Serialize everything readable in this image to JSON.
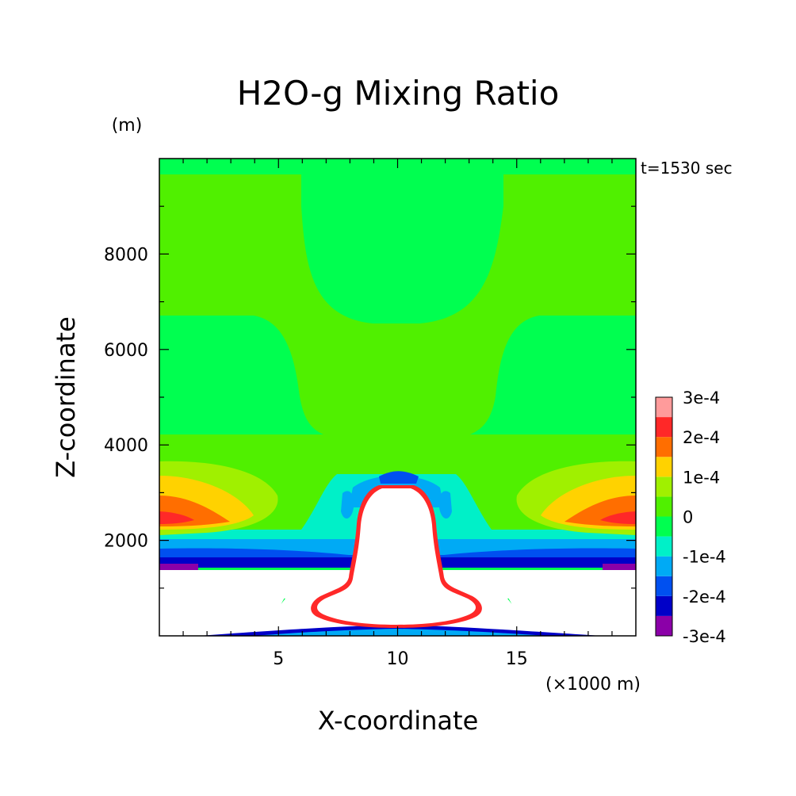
{
  "chart_data": {
    "type": "contour",
    "title": "H2O-g Mixing Ratio",
    "time_label": "t=1530 sec",
    "xlabel": "X-coordinate",
    "xunit": "(×1000 m)",
    "ylabel": "Z-coordinate",
    "yunit": "(m)",
    "xlim": [
      0,
      20
    ],
    "ylim": [
      0,
      10000
    ],
    "xticks": [
      5,
      10,
      15
    ],
    "yticks": [
      2000,
      4000,
      6000,
      8000
    ],
    "tick_labels": {
      "x": [
        "5",
        "10",
        "15"
      ],
      "y": [
        "2000",
        "4000",
        "6000",
        "8000"
      ]
    },
    "colorbar": {
      "labels": [
        "3e-4",
        "2e-4",
        "1e-4",
        "0",
        "-1e-4",
        "-2e-4",
        "-3e-4"
      ],
      "levels": [
        -0.0003,
        -0.00025,
        -0.0002,
        -0.00015,
        -0.0001,
        -5e-05,
        0,
        5e-05,
        0.0001,
        0.00015,
        0.0002,
        0.00025,
        0.0003
      ],
      "colors": [
        "#8b00a8",
        "#0000c8",
        "#0050f0",
        "#00aaf5",
        "#00f0c8",
        "#00ff50",
        "#50f000",
        "#a0f000",
        "#ffd200",
        "#ff6e00",
        "#ff2828",
        "#ff9b9b"
      ]
    }
  },
  "colors": {
    "band_pos_low": "#50f000",
    "band_neg_low": "#00ff50",
    "missing": "#ffffff",
    "axis": "#000000"
  }
}
